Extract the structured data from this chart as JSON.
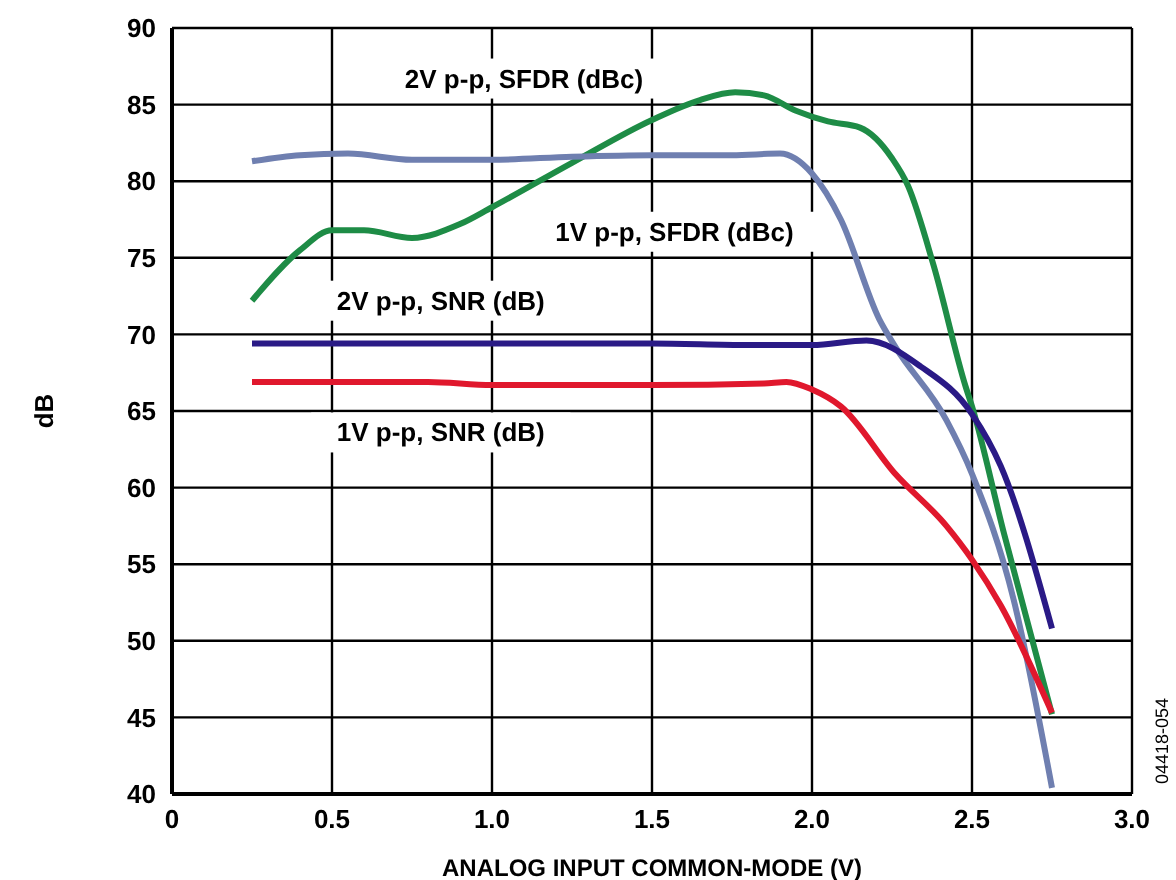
{
  "chart_data": {
    "type": "line",
    "xlabel": "ANALOG INPUT COMMON-MODE (V)",
    "ylabel": "dB",
    "xlim": [
      0,
      3.0
    ],
    "xticks": [
      0,
      0.5,
      {
        "value": 1,
        "label": "1.0"
      },
      1.5,
      {
        "value": 2,
        "label": "2.0"
      },
      2.5,
      {
        "value": 3,
        "label": "3.0"
      }
    ],
    "ylim": [
      40,
      90
    ],
    "yticks": [
      40,
      45,
      50,
      55,
      60,
      65,
      70,
      75,
      80,
      85,
      90
    ],
    "grid": true,
    "marker": "none",
    "line_style": "solid",
    "series": [
      {
        "name": "2V p-p, SFDR (dBc)",
        "color": "#1e8c46",
        "x": [
          0.25,
          0.4,
          0.5,
          0.6,
          0.75,
          0.9,
          1.0,
          1.25,
          1.5,
          1.65,
          1.76,
          1.85,
          1.95,
          2.05,
          2.15,
          2.25,
          2.3,
          2.38,
          2.48,
          2.5,
          2.6,
          2.75
        ],
        "values": [
          72.2,
          75.5,
          76.8,
          76.8,
          76.3,
          77.2,
          78.3,
          81.2,
          84,
          85.3,
          85.8,
          85.6,
          84.6,
          83.9,
          83.5,
          81.5,
          79.7,
          74.5,
          66.6,
          65.3,
          57,
          45.2
        ]
      },
      {
        "name": "1V p-p, SFDR (dBc)",
        "color": "#6f7fb0",
        "x": [
          0.25,
          0.4,
          0.55,
          0.75,
          1.0,
          1.25,
          1.5,
          1.75,
          1.9,
          2.0,
          2.09,
          2.21,
          2.26,
          2.42,
          2.5,
          2.63,
          2.75
        ],
        "values": [
          81.3,
          81.7,
          81.8,
          81.4,
          81.4,
          81.6,
          81.7,
          81.7,
          81.8,
          80.5,
          77.5,
          71,
          69.2,
          64.4,
          60.9,
          52.7,
          40.4
        ]
      },
      {
        "name": "2V p-p, SNR (dB)",
        "color": "#2a1a86",
        "x": [
          0.25,
          0.5,
          1.0,
          1.5,
          1.8,
          2.0,
          2.17,
          2.34,
          2.5,
          2.59,
          2.75
        ],
        "values": [
          69.4,
          69.4,
          69.4,
          69.4,
          69.3,
          69.3,
          69.6,
          67.9,
          64.8,
          61.4,
          50.8
        ]
      },
      {
        "name": "1V p-p, SNR (dB)",
        "color": "#e0182d",
        "x": [
          0.25,
          0.5,
          0.8,
          1.0,
          1.5,
          1.85,
          1.92,
          2.0,
          2.09,
          2.26,
          2.42,
          2.5,
          2.59,
          2.75
        ],
        "values": [
          66.9,
          66.9,
          66.9,
          66.7,
          66.7,
          66.8,
          66.9,
          66.4,
          65.3,
          60.9,
          57.5,
          55.3,
          52.3,
          45.3
        ]
      }
    ],
    "annotations": [
      "04418-054"
    ]
  }
}
